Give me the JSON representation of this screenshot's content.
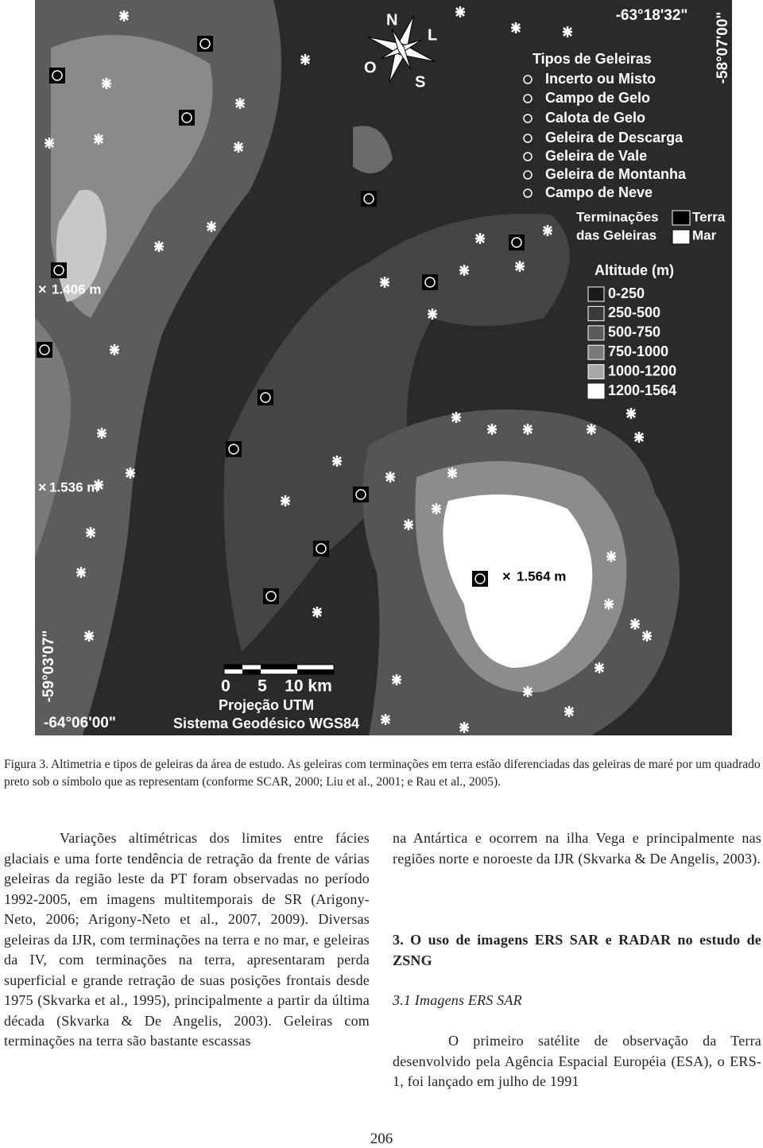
{
  "map": {
    "compass": {
      "north": "N",
      "east": "L",
      "south": "S",
      "west": "O"
    },
    "coordinates": {
      "top": "-63°18'32\"",
      "right": "-58°07'00\"",
      "left": "-59°03'07\"",
      "bottom": "-64°06'00\""
    },
    "peaks": [
      "1.406 m",
      "1.536 m",
      "1.564 m"
    ],
    "legend": {
      "title": "Tipos de Geleiras",
      "items": [
        "Incerto ou Misto",
        "Campo de Gelo",
        "Calota de Gelo",
        "Geleira de Descarga",
        "Geleira de Vale",
        "Geleira de Montanha",
        "Campo de Neve"
      ]
    },
    "terminations": {
      "title": [
        "Terminações",
        "das Geleiras"
      ],
      "items": [
        "Terra",
        "Mar"
      ]
    },
    "altitude": {
      "title": "Altitude (m)",
      "classes": [
        "0-250",
        "250-500",
        "500-750",
        "750-1000",
        "1000-1200",
        "1200-1564"
      ]
    },
    "scale": [
      "0",
      "5",
      "10 km"
    ],
    "projection": "Projeção UTM",
    "datum": "Sistema Geodésico WGS84"
  },
  "caption": "Figura 3. Altimetria e tipos de geleiras da área de estudo. As geleiras com terminações em terra estão diferenciadas das geleiras de maré por um quadrado preto sob o símbolo que as representam (conforme SCAR, 2000; Liu et al., 2001; e Rau et al., 2005).",
  "left_column": [
    "Variações altimétricas dos limites entre fácies glaciais e uma forte tendência de retração da frente de várias geleiras da região leste da PT foram observadas no período 1992-2005, em imagens multitemporais de SR (Arigony-Neto, 2006; Arigony-Neto et al., 2007, 2009). Diversas geleiras da IJR, com terminações na terra e no mar, e geleiras da IV, com terminações na terra, apresentaram perda superficial e grande retração de suas posições frontais desde 1975 (Skvarka et al., 1995), principalmente a partir da última década (Skvarka & De Angelis, 2003). Geleiras com terminações na terra são bastante escassas"
  ],
  "right_column": {
    "paragraph_1": "na Antártica e ocorrem na ilha Vega e principalmente nas regiões norte e noroeste da IJR (Skvarka & De Angelis, 2003).",
    "heading": "3. O uso de imagens ERS SAR e RADAR no estudo de ZSNG",
    "subheading": "3.1 Imagens ERS SAR",
    "paragraph_2": "O primeiro satélite de observação da Terra desenvolvido pela Agência Espacial Européia (ESA), o ERS-1, foi lançado em julho de 1991"
  },
  "page_number": "206"
}
